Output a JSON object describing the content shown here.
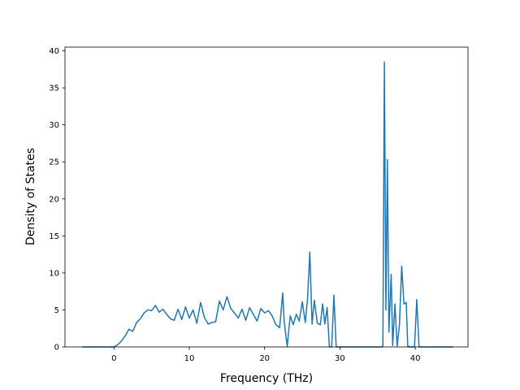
{
  "chart_data": {
    "type": "line",
    "title": "",
    "xlabel": "Frequency (THz)",
    "ylabel": "Density of States",
    "xlim": [
      -6.5,
      47.0
    ],
    "ylim": [
      0,
      40.5
    ],
    "xticks": [
      0,
      10,
      20,
      30,
      40
    ],
    "yticks": [
      0,
      5,
      10,
      15,
      20,
      25,
      30,
      35,
      40
    ],
    "grid": false,
    "legend": "none",
    "series": [
      {
        "color": "#1f77b4",
        "x": [
          -4.2,
          -3.0,
          -2.0,
          -1.0,
          0.0,
          0.5,
          1.0,
          1.5,
          2.0,
          2.5,
          3.0,
          3.5,
          4.0,
          4.5,
          5.0,
          5.5,
          6.0,
          6.5,
          7.0,
          7.5,
          8.0,
          8.5,
          9.0,
          9.5,
          10.0,
          10.5,
          11.0,
          11.5,
          12.0,
          12.5,
          13.0,
          13.5,
          14.0,
          14.5,
          15.0,
          15.5,
          16.0,
          16.5,
          17.0,
          17.5,
          18.0,
          18.5,
          19.0,
          19.5,
          20.0,
          20.5,
          21.0,
          21.5,
          22.0,
          22.4,
          22.6,
          23.0,
          23.4,
          23.8,
          24.2,
          24.6,
          25.0,
          25.4,
          25.7,
          26.0,
          26.3,
          26.6,
          27.0,
          27.4,
          27.7,
          28.0,
          28.3,
          28.6,
          28.9,
          29.2,
          29.5,
          30.0,
          32.0,
          34.0,
          35.5,
          35.7,
          35.9,
          36.1,
          36.3,
          36.5,
          36.8,
          37.0,
          37.3,
          37.6,
          37.9,
          38.2,
          38.5,
          38.8,
          39.0,
          39.3,
          39.6,
          39.9,
          40.2,
          40.5,
          40.8,
          41.0,
          42.0,
          43.0,
          45.0
        ],
        "y": [
          0,
          0,
          0,
          0,
          0,
          0.3,
          0.8,
          1.5,
          2.4,
          2.1,
          3.3,
          3.8,
          4.6,
          5.0,
          4.9,
          5.6,
          4.7,
          5.1,
          4.4,
          3.8,
          3.6,
          5.1,
          3.7,
          5.4,
          3.9,
          5.0,
          3.2,
          6.0,
          4.0,
          3.1,
          3.3,
          3.4,
          6.2,
          5.0,
          6.8,
          5.2,
          4.6,
          3.9,
          5.1,
          3.6,
          5.3,
          4.4,
          3.5,
          5.2,
          4.6,
          4.9,
          4.2,
          3.0,
          2.6,
          7.3,
          3.4,
          0.1,
          4.2,
          3.0,
          4.4,
          3.5,
          6.1,
          3.3,
          6.5,
          12.8,
          3.1,
          6.3,
          3.2,
          3.0,
          5.8,
          3.1,
          5.3,
          0.0,
          0.0,
          7.0,
          0.0,
          0.0,
          0.0,
          0.0,
          0.0,
          0.1,
          38.5,
          5.0,
          25.3,
          2.0,
          9.8,
          0.2,
          5.8,
          0.1,
          3.0,
          10.9,
          5.8,
          6.0,
          0.1,
          0.0,
          0.0,
          0.0,
          6.4,
          0.0,
          0.0,
          0.0,
          0.0,
          0.0,
          0.0
        ]
      }
    ]
  }
}
